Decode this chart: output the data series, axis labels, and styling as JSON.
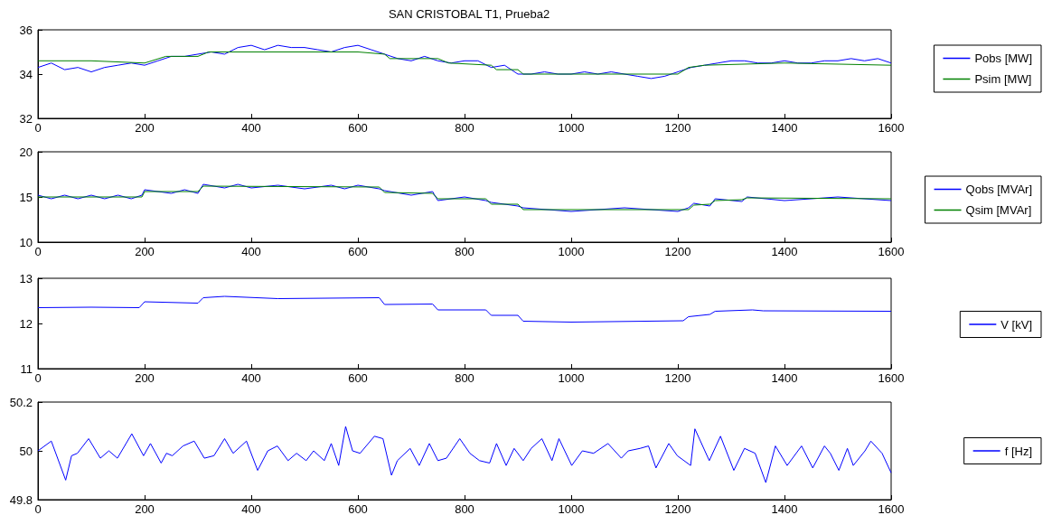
{
  "chart_data": [
    {
      "type": "line",
      "title": "SAN CRISTOBAL T1, Prueba2",
      "xlim": [
        0,
        1600
      ],
      "xticks": [
        0,
        200,
        400,
        600,
        800,
        1000,
        1200,
        1400,
        1600
      ],
      "ylim": [
        32,
        36
      ],
      "yticks": [
        32,
        34,
        36
      ],
      "grid": false,
      "legend": "right",
      "marker": "none",
      "line_style": "solid",
      "series": [
        {
          "name": "Pobs [MW]",
          "color": "#0000ff",
          "x": [
            0,
            25,
            50,
            75,
            100,
            125,
            150,
            175,
            200,
            225,
            250,
            275,
            300,
            325,
            350,
            375,
            400,
            425,
            450,
            475,
            500,
            525,
            550,
            575,
            600,
            625,
            650,
            675,
            700,
            725,
            750,
            775,
            800,
            825,
            850,
            875,
            900,
            925,
            950,
            975,
            1000,
            1025,
            1050,
            1075,
            1100,
            1125,
            1150,
            1175,
            1200,
            1225,
            1250,
            1275,
            1300,
            1325,
            1350,
            1375,
            1400,
            1425,
            1450,
            1475,
            1500,
            1525,
            1550,
            1575,
            1600
          ],
          "values": [
            34.3,
            34.5,
            34.2,
            34.3,
            34.1,
            34.3,
            34.4,
            34.5,
            34.4,
            34.6,
            34.8,
            34.8,
            34.9,
            35.0,
            34.9,
            35.2,
            35.3,
            35.1,
            35.3,
            35.2,
            35.2,
            35.1,
            35.0,
            35.2,
            35.3,
            35.1,
            34.9,
            34.7,
            34.6,
            34.8,
            34.6,
            34.5,
            34.6,
            34.6,
            34.3,
            34.4,
            34.0,
            34.0,
            34.1,
            34.0,
            34.0,
            34.1,
            34.0,
            34.1,
            34.0,
            33.9,
            33.8,
            33.9,
            34.1,
            34.3,
            34.4,
            34.5,
            34.6,
            34.6,
            34.5,
            34.5,
            34.6,
            34.5,
            34.5,
            34.6,
            34.6,
            34.7,
            34.6,
            34.7,
            34.5
          ]
        },
        {
          "name": "Psim [MW]",
          "color": "#008000",
          "x": [
            0,
            100,
            200,
            240,
            300,
            320,
            400,
            600,
            650,
            660,
            750,
            770,
            850,
            860,
            900,
            910,
            1200,
            1220,
            1250,
            1400,
            1600
          ],
          "values": [
            34.6,
            34.6,
            34.5,
            34.8,
            34.8,
            35.0,
            35.0,
            35.0,
            34.9,
            34.7,
            34.7,
            34.5,
            34.4,
            34.2,
            34.2,
            34.0,
            34.0,
            34.3,
            34.4,
            34.5,
            34.4
          ]
        }
      ]
    },
    {
      "type": "line",
      "xlim": [
        0,
        1600
      ],
      "xticks": [
        0,
        200,
        400,
        600,
        800,
        1000,
        1200,
        1400,
        1600
      ],
      "ylim": [
        10,
        20
      ],
      "yticks": [
        10,
        15,
        20
      ],
      "grid": false,
      "legend": "right",
      "marker": "none",
      "line_style": "solid",
      "series": [
        {
          "name": "Qobs [MVAr]",
          "color": "#0000ff",
          "x": [
            0,
            25,
            50,
            75,
            100,
            125,
            150,
            175,
            195,
            200,
            250,
            275,
            300,
            310,
            350,
            375,
            400,
            450,
            500,
            550,
            575,
            600,
            640,
            650,
            700,
            740,
            750,
            800,
            840,
            850,
            900,
            910,
            1000,
            1100,
            1200,
            1220,
            1230,
            1260,
            1270,
            1320,
            1330,
            1400,
            1500,
            1600
          ],
          "values": [
            15.2,
            14.8,
            15.2,
            14.8,
            15.2,
            14.8,
            15.2,
            14.8,
            15.2,
            15.8,
            15.4,
            15.8,
            15.4,
            16.4,
            16.0,
            16.4,
            16.0,
            16.3,
            15.9,
            16.3,
            15.9,
            16.3,
            15.9,
            15.7,
            15.2,
            15.6,
            14.6,
            15.0,
            14.6,
            14.4,
            14.0,
            13.8,
            13.4,
            13.8,
            13.4,
            13.8,
            14.3,
            14.0,
            14.8,
            14.5,
            15.0,
            14.6,
            15.0,
            14.6
          ]
        },
        {
          "name": "Qsim [MVAr]",
          "color": "#008000",
          "x": [
            0,
            195,
            200,
            300,
            310,
            640,
            650,
            740,
            750,
            840,
            850,
            900,
            910,
            1220,
            1230,
            1260,
            1270,
            1320,
            1330,
            1600
          ],
          "values": [
            15.0,
            15.0,
            15.6,
            15.6,
            16.2,
            16.1,
            15.5,
            15.4,
            14.8,
            14.8,
            14.2,
            14.2,
            13.6,
            13.6,
            14.1,
            14.2,
            14.6,
            14.7,
            14.9,
            14.8
          ]
        }
      ]
    },
    {
      "type": "line",
      "xlim": [
        0,
        1600
      ],
      "xticks": [
        0,
        200,
        400,
        600,
        800,
        1000,
        1200,
        1400,
        1600
      ],
      "ylim": [
        11,
        13
      ],
      "yticks": [
        11,
        12,
        13
      ],
      "grid": false,
      "legend": "right",
      "marker": "none",
      "line_style": "solid",
      "series": [
        {
          "name": "V [kV]",
          "color": "#0000ff",
          "x": [
            0,
            100,
            190,
            200,
            300,
            310,
            350,
            450,
            640,
            650,
            740,
            750,
            840,
            850,
            900,
            910,
            1000,
            1210,
            1220,
            1260,
            1270,
            1340,
            1360,
            1600
          ],
          "values": [
            12.35,
            12.36,
            12.35,
            12.48,
            12.45,
            12.57,
            12.6,
            12.55,
            12.57,
            12.42,
            12.43,
            12.3,
            12.3,
            12.18,
            12.18,
            12.05,
            12.03,
            12.06,
            12.15,
            12.2,
            12.27,
            12.3,
            12.28,
            12.27
          ]
        }
      ]
    },
    {
      "type": "line",
      "xlim": [
        0,
        1600
      ],
      "xticks": [
        0,
        200,
        400,
        600,
        800,
        1000,
        1200,
        1400,
        1600
      ],
      "ylim": [
        49.8,
        50.2
      ],
      "yticks": [
        49.8,
        50,
        50.2
      ],
      "grid": false,
      "legend": "right",
      "marker": "none",
      "line_style": "solid",
      "series": [
        {
          "name": "f [Hz]",
          "color": "#0000ff",
          "x": [
            0,
            25,
            52,
            63,
            74,
            95,
            117,
            133,
            149,
            176,
            198,
            211,
            231,
            241,
            252,
            272,
            293,
            312,
            330,
            350,
            366,
            391,
            412,
            431,
            449,
            469,
            485,
            503,
            517,
            537,
            550,
            564,
            577,
            590,
            604,
            631,
            647,
            663,
            674,
            698,
            715,
            734,
            750,
            766,
            791,
            810,
            828,
            847,
            860,
            878,
            893,
            910,
            925,
            945,
            964,
            977,
            1001,
            1021,
            1042,
            1069,
            1094,
            1107,
            1129,
            1145,
            1159,
            1183,
            1199,
            1224,
            1232,
            1259,
            1280,
            1305,
            1325,
            1345,
            1365,
            1383,
            1405,
            1432,
            1453,
            1475,
            1486,
            1502,
            1518,
            1529,
            1551,
            1562,
            1583,
            1600
          ],
          "values": [
            50.0,
            50.04,
            49.88,
            49.98,
            49.99,
            50.05,
            49.97,
            50.0,
            49.97,
            50.07,
            49.98,
            50.03,
            49.95,
            49.99,
            49.98,
            50.02,
            50.04,
            49.97,
            49.98,
            50.05,
            49.99,
            50.04,
            49.92,
            50.0,
            50.02,
            49.96,
            49.99,
            49.96,
            50.0,
            49.96,
            50.03,
            49.94,
            50.1,
            50.0,
            49.99,
            50.06,
            50.05,
            49.9,
            49.96,
            50.01,
            49.94,
            50.03,
            49.96,
            49.97,
            50.05,
            49.99,
            49.96,
            49.95,
            50.03,
            49.94,
            50.01,
            49.96,
            50.01,
            50.05,
            49.96,
            50.05,
            49.94,
            50.0,
            49.99,
            50.03,
            49.97,
            50.0,
            50.01,
            50.02,
            49.93,
            50.03,
            49.98,
            49.94,
            50.09,
            49.96,
            50.06,
            49.92,
            50.01,
            49.99,
            49.87,
            50.02,
            49.94,
            50.02,
            49.93,
            50.02,
            49.99,
            49.92,
            50.01,
            49.94,
            50.0,
            50.04,
            49.99,
            49.91
          ]
        }
      ]
    }
  ]
}
